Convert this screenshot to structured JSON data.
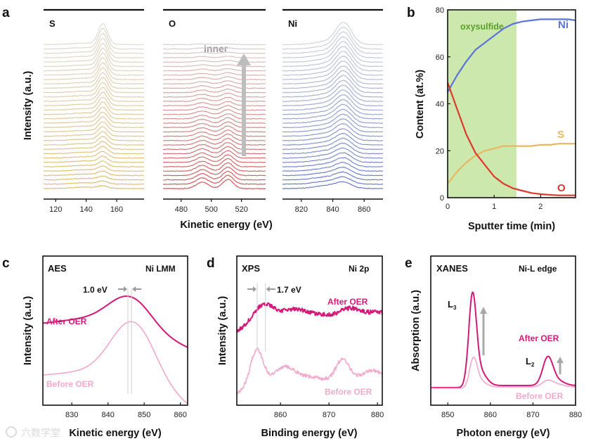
{
  "chart_data": [
    {
      "panel": "a",
      "type": "line",
      "ylabel": "Intensity (a.u.)",
      "xlabel": "Kinetic energy (eV)",
      "annotation": "inner",
      "subpanels": [
        {
          "label": "S",
          "xticks": [
            120,
            140,
            160
          ],
          "xlim": [
            112,
            178
          ],
          "peaks": [
            151
          ],
          "color": "#e0b050"
        },
        {
          "label": "O",
          "xticks": [
            480,
            500,
            520
          ],
          "xlim": [
            468,
            536
          ],
          "peaks": [
            493,
            511
          ],
          "color": "#cc3333"
        },
        {
          "label": "Ni",
          "xticks": [
            820,
            840,
            860
          ],
          "xlim": [
            808,
            872
          ],
          "peaks": [
            847
          ],
          "color": "#4a5fc1"
        }
      ]
    },
    {
      "panel": "b",
      "type": "line",
      "xlabel": "Sputter time (min)",
      "ylabel": "Content (at.%)",
      "xlim": [
        0,
        2.75
      ],
      "ylim": [
        0,
        80
      ],
      "xticks": [
        0,
        1,
        2
      ],
      "yticks": [
        0,
        20,
        40,
        60,
        80
      ],
      "region": {
        "label": "oxysulfide",
        "x": [
          0,
          1.48
        ]
      },
      "series": [
        {
          "name": "Ni",
          "color": "#5b73d9",
          "x": [
            0,
            0.2,
            0.4,
            0.6,
            0.8,
            1.0,
            1.2,
            1.4,
            1.6,
            1.8,
            2.0,
            2.2,
            2.4,
            2.6,
            2.75
          ],
          "y": [
            45,
            52,
            58,
            63,
            66,
            69,
            72,
            74,
            75,
            75.5,
            76,
            76,
            76,
            76,
            75.5
          ]
        },
        {
          "name": "S",
          "color": "#e8b860",
          "x": [
            0,
            0.2,
            0.4,
            0.6,
            0.8,
            1.0,
            1.2,
            1.4,
            1.6,
            1.8,
            2.0,
            2.2,
            2.4,
            2.6,
            2.75
          ],
          "y": [
            6,
            11,
            15,
            18,
            20,
            21,
            22,
            22,
            22,
            22,
            22.5,
            22.5,
            23,
            23,
            23
          ]
        },
        {
          "name": "O",
          "color": "#d93a2e",
          "x": [
            0,
            0.2,
            0.4,
            0.6,
            0.8,
            1.0,
            1.2,
            1.4,
            1.6,
            1.8,
            2.0,
            2.2,
            2.4,
            2.6,
            2.75
          ],
          "y": [
            49,
            38,
            27,
            19,
            14,
            9,
            6,
            4,
            3,
            2,
            1.5,
            1.2,
            1.0,
            1.0,
            1.0
          ]
        }
      ]
    },
    {
      "panel": "c",
      "type": "line",
      "title": "AES",
      "subtitle": "Ni LMM",
      "xlabel": "Kinetic energy (eV)",
      "ylabel": "Intensity (a.u.)",
      "xlim": [
        822,
        862
      ],
      "xticks": [
        830,
        840,
        850,
        860
      ],
      "shift_label": "1.0 eV",
      "series": [
        {
          "name": "After OER",
          "color": "#d4197a",
          "peak": 845.5
        },
        {
          "name": "Before OER",
          "color": "#f3a8cb",
          "peak": 846.5
        }
      ]
    },
    {
      "panel": "d",
      "type": "line",
      "title": "XPS",
      "subtitle": "Ni 2p",
      "xlabel": "Binding energy (eV)",
      "ylabel": "Intensity (a.u.)",
      "xlim": [
        851,
        881
      ],
      "xticks": [
        860,
        870,
        880
      ],
      "shift_label": "1.7 eV",
      "series": [
        {
          "name": "After OER",
          "color": "#d4197a",
          "peaks": [
            856.9,
            862.5,
            874.5
          ]
        },
        {
          "name": "Before OER",
          "color": "#f3a8cb",
          "peaks": [
            855.2,
            861,
            872.8,
            879
          ]
        }
      ]
    },
    {
      "panel": "e",
      "type": "line",
      "title": "XANES",
      "subtitle": "Ni-L edge",
      "xlabel": "Photon energy (eV)",
      "ylabel": "Absorption (a.u.)",
      "xlim": [
        846,
        880
      ],
      "xticks": [
        850,
        860,
        870,
        880
      ],
      "edge_labels": [
        "L",
        "L"
      ],
      "edge_subscripts": [
        "3",
        "2"
      ],
      "series": [
        {
          "name": "After OER",
          "color": "#d4197a",
          "peaks": [
            855.8,
            873.5
          ]
        },
        {
          "name": "Before OER",
          "color": "#f3a8cb",
          "peaks": [
            856,
            873.5
          ]
        }
      ]
    }
  ],
  "panel_labels": [
    "a",
    "b",
    "c",
    "d",
    "e"
  ],
  "watermark": "六数学堂"
}
